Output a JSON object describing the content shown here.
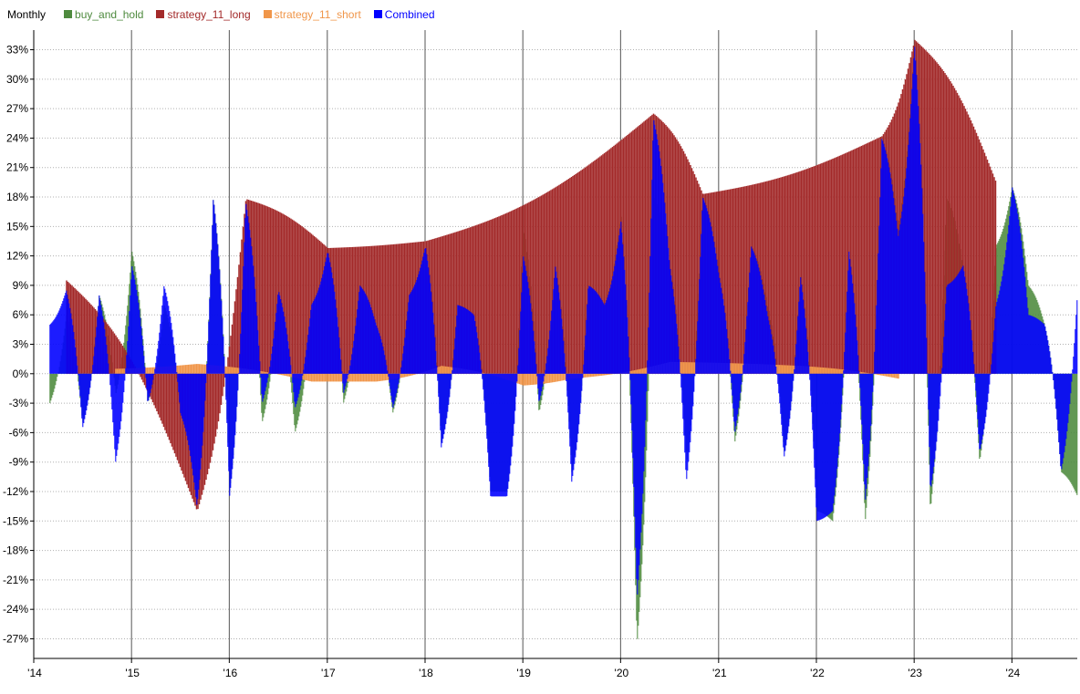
{
  "chart_data": {
    "type": "bar",
    "title": "Monthly",
    "xlabel": "",
    "ylabel": "",
    "ylim": [
      -29,
      35
    ],
    "grid": true,
    "legend_placement": "top-left",
    "x_range": [
      "2014-03-01",
      "2024-09-01"
    ],
    "x_ticks": [
      {
        "date": "2014-01-01",
        "label": "'14"
      },
      {
        "date": "2015-01-01",
        "label": "'15"
      },
      {
        "date": "2016-01-01",
        "label": "'16"
      },
      {
        "date": "2017-01-01",
        "label": "'17"
      },
      {
        "date": "2018-01-01",
        "label": "'18"
      },
      {
        "date": "2019-01-01",
        "label": "'19"
      },
      {
        "date": "2020-01-01",
        "label": "'20"
      },
      {
        "date": "2021-01-01",
        "label": "'21"
      },
      {
        "date": "2022-01-01",
        "label": "'22"
      },
      {
        "date": "2023-01-01",
        "label": "'23"
      },
      {
        "date": "2024-01-01",
        "label": "'24"
      }
    ],
    "y_ticks": [
      {
        "value": 33,
        "label": "33%"
      },
      {
        "value": 30,
        "label": "30%"
      },
      {
        "value": 27,
        "label": "27%"
      },
      {
        "value": 24,
        "label": "24%"
      },
      {
        "value": 21,
        "label": "21%"
      },
      {
        "value": 18,
        "label": "18%"
      },
      {
        "value": 15,
        "label": "15%"
      },
      {
        "value": 12,
        "label": "12%"
      },
      {
        "value": 9,
        "label": "9%"
      },
      {
        "value": 6,
        "label": "6%"
      },
      {
        "value": 3,
        "label": "3%"
      },
      {
        "value": 0,
        "label": "0%"
      },
      {
        "value": -3,
        "label": "-3%"
      },
      {
        "value": -6,
        "label": "-6%"
      },
      {
        "value": -9,
        "label": "-9%"
      },
      {
        "value": -12,
        "label": "-12%"
      },
      {
        "value": -15,
        "label": "-15%"
      },
      {
        "value": -18,
        "label": "-18%"
      },
      {
        "value": -21,
        "label": "-21%"
      },
      {
        "value": -24,
        "label": "-24%"
      },
      {
        "value": -27,
        "label": "-27%"
      }
    ],
    "series": [
      {
        "name": "buy_and_hold",
        "color": "#4e8a3e",
        "points": [
          [
            "2014-03-01",
            -3
          ],
          [
            "2014-05-01",
            6
          ],
          [
            "2014-07-01",
            -5
          ],
          [
            "2014-09-01",
            8
          ],
          [
            "2014-11-01",
            -2
          ],
          [
            "2015-01-01",
            12.5
          ],
          [
            "2015-03-01",
            -3
          ],
          [
            "2015-05-01",
            7
          ],
          [
            "2015-07-01",
            -4
          ],
          [
            "2015-09-01",
            -13
          ],
          [
            "2015-11-01",
            18
          ],
          [
            "2016-01-01",
            -12
          ],
          [
            "2016-03-01",
            17
          ],
          [
            "2016-05-01",
            -5
          ],
          [
            "2016-07-01",
            8
          ],
          [
            "2016-09-01",
            -6
          ],
          [
            "2016-11-01",
            6
          ],
          [
            "2017-01-01",
            12.5
          ],
          [
            "2017-03-01",
            -3
          ],
          [
            "2017-05-01",
            9
          ],
          [
            "2017-07-01",
            5
          ],
          [
            "2017-09-01",
            -4
          ],
          [
            "2017-11-01",
            8
          ],
          [
            "2018-01-01",
            13
          ],
          [
            "2018-03-01",
            -7
          ],
          [
            "2018-05-01",
            7
          ],
          [
            "2018-07-01",
            6
          ],
          [
            "2018-09-01",
            -12
          ],
          [
            "2018-11-01",
            -12
          ],
          [
            "2019-01-01",
            15
          ],
          [
            "2019-03-01",
            -4
          ],
          [
            "2019-05-01",
            11
          ],
          [
            "2019-07-01",
            -10
          ],
          [
            "2019-09-01",
            9
          ],
          [
            "2019-11-01",
            7
          ],
          [
            "2020-01-01",
            16
          ],
          [
            "2020-03-01",
            -27.5
          ],
          [
            "2020-05-01",
            18
          ],
          [
            "2020-07-01",
            11
          ],
          [
            "2020-09-01",
            -9
          ],
          [
            "2020-11-01",
            18
          ],
          [
            "2021-01-01",
            10
          ],
          [
            "2021-03-01",
            -7
          ],
          [
            "2021-05-01",
            13
          ],
          [
            "2021-07-01",
            7
          ],
          [
            "2021-09-01",
            -8
          ],
          [
            "2021-11-01",
            10
          ],
          [
            "2022-01-01",
            -14
          ],
          [
            "2022-03-01",
            -15
          ],
          [
            "2022-05-01",
            12
          ],
          [
            "2022-07-01",
            -15
          ],
          [
            "2022-09-01",
            24
          ],
          [
            "2022-11-01",
            15
          ],
          [
            "2023-01-01",
            33.5
          ],
          [
            "2023-03-01",
            -14
          ],
          [
            "2023-05-01",
            18
          ],
          [
            "2023-07-01",
            11
          ],
          [
            "2023-09-01",
            -9
          ],
          [
            "2023-11-01",
            13
          ],
          [
            "2024-01-01",
            19
          ],
          [
            "2024-03-01",
            9
          ],
          [
            "2024-05-01",
            5
          ],
          [
            "2024-07-01",
            -10
          ],
          [
            "2024-09-01",
            -12.5
          ]
        ]
      },
      {
        "name": "strategy_11_long",
        "color": "#a32a2a",
        "points": [
          [
            "2014-05-01",
            9.5
          ],
          [
            "2015-09-01",
            -14
          ],
          [
            "2016-03-01",
            17.8
          ],
          [
            "2017-01-01",
            12.8
          ],
          [
            "2018-01-01",
            13.5
          ],
          [
            "2020-05-01",
            26.5
          ],
          [
            "2020-11-01",
            18.3
          ],
          [
            "2022-09-01",
            24.2
          ],
          [
            "2023-01-01",
            34
          ],
          [
            "2023-11-01",
            19.5
          ]
        ]
      },
      {
        "name": "strategy_11_short",
        "color": "#f0964a",
        "points": [
          [
            "2014-11-01",
            0.5
          ],
          [
            "2015-09-01",
            1
          ],
          [
            "2016-11-01",
            -0.8
          ],
          [
            "2017-07-01",
            -0.8
          ],
          [
            "2018-03-01",
            0.8
          ],
          [
            "2019-01-01",
            -1.2
          ],
          [
            "2019-07-01",
            -0.5
          ],
          [
            "2020-07-01",
            1.2
          ],
          [
            "2021-11-01",
            0.8
          ],
          [
            "2022-11-01",
            -0.5
          ]
        ]
      },
      {
        "name": "Combined",
        "color": "#0000ff",
        "points": [
          [
            "2014-03-01",
            5
          ],
          [
            "2014-05-01",
            8.5
          ],
          [
            "2014-07-01",
            -5.5
          ],
          [
            "2014-09-01",
            8
          ],
          [
            "2014-11-01",
            -9
          ],
          [
            "2015-01-01",
            11
          ],
          [
            "2015-03-01",
            -3
          ],
          [
            "2015-05-01",
            9
          ],
          [
            "2015-07-01",
            -4
          ],
          [
            "2015-09-01",
            -13.5
          ],
          [
            "2015-11-01",
            18
          ],
          [
            "2016-01-01",
            -12.5
          ],
          [
            "2016-03-01",
            17.5
          ],
          [
            "2016-05-01",
            -3
          ],
          [
            "2016-07-01",
            8.5
          ],
          [
            "2016-09-01",
            -3.5
          ],
          [
            "2016-11-01",
            7
          ],
          [
            "2017-01-01",
            12.5
          ],
          [
            "2017-03-01",
            -2
          ],
          [
            "2017-05-01",
            9
          ],
          [
            "2017-07-01",
            5
          ],
          [
            "2017-09-01",
            -3.5
          ],
          [
            "2017-11-01",
            8
          ],
          [
            "2018-01-01",
            13
          ],
          [
            "2018-03-01",
            -7.5
          ],
          [
            "2018-05-01",
            7
          ],
          [
            "2018-07-01",
            6
          ],
          [
            "2018-09-01",
            -12.5
          ],
          [
            "2018-11-01",
            -12.5
          ],
          [
            "2019-01-01",
            12
          ],
          [
            "2019-03-01",
            -3
          ],
          [
            "2019-05-01",
            11
          ],
          [
            "2019-07-01",
            -11
          ],
          [
            "2019-09-01",
            9
          ],
          [
            "2019-11-01",
            7
          ],
          [
            "2020-01-01",
            15.5
          ],
          [
            "2020-03-01",
            -23
          ],
          [
            "2020-05-01",
            26
          ],
          [
            "2020-07-01",
            11
          ],
          [
            "2020-09-01",
            -11
          ],
          [
            "2020-11-01",
            18
          ],
          [
            "2021-01-01",
            10
          ],
          [
            "2021-03-01",
            -6
          ],
          [
            "2021-05-01",
            13
          ],
          [
            "2021-07-01",
            6
          ],
          [
            "2021-09-01",
            -8.5
          ],
          [
            "2021-11-01",
            10
          ],
          [
            "2022-01-01",
            -15
          ],
          [
            "2022-03-01",
            -14
          ],
          [
            "2022-05-01",
            12.5
          ],
          [
            "2022-07-01",
            -13
          ],
          [
            "2022-09-01",
            24
          ],
          [
            "2022-11-01",
            14
          ],
          [
            "2023-01-01",
            33.5
          ],
          [
            "2023-03-01",
            -12
          ],
          [
            "2023-05-01",
            9
          ],
          [
            "2023-07-01",
            11
          ],
          [
            "2023-09-01",
            -8
          ],
          [
            "2023-11-01",
            7
          ],
          [
            "2024-01-01",
            19
          ],
          [
            "2024-03-01",
            6
          ],
          [
            "2024-05-01",
            5
          ],
          [
            "2024-07-01",
            -10
          ],
          [
            "2024-09-01",
            8.5
          ]
        ]
      }
    ]
  }
}
